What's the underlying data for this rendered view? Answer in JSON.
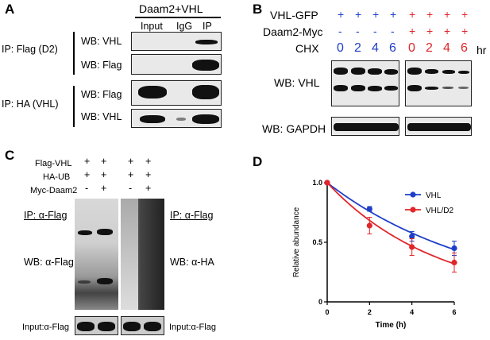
{
  "panelA": {
    "letter": "A",
    "header": "Daam2+VHL",
    "lanes": [
      "Input",
      "IgG",
      "IP"
    ],
    "ip_flag": "IP: Flag (D2)",
    "ip_ha": "IP: HA (VHL)",
    "wb": [
      "WB: VHL",
      "WB: Flag",
      "WB: Flag",
      "WB: VHL"
    ]
  },
  "panelB": {
    "letter": "B",
    "row1_label": "VHL-GFP",
    "row2_label": "Daam2-Myc",
    "row3_label": "CHX",
    "left_vhl": [
      "+",
      "+",
      "+",
      "+"
    ],
    "left_daam": [
      "-",
      "-",
      "-",
      "-"
    ],
    "right_vhl": [
      "+",
      "+",
      "+",
      "+"
    ],
    "right_daam": [
      "+",
      "+",
      "+",
      "+"
    ],
    "times": [
      "0",
      "2",
      "4",
      "6"
    ],
    "unit": "hr",
    "wb_vhl": "WB: VHL",
    "wb_gapdh": "WB: GAPDH",
    "colors": {
      "left": "#1f3fc8",
      "right": "#e0262a"
    }
  },
  "panelC": {
    "letter": "C",
    "rows": [
      "Flag-VHL",
      "HA-UB",
      "Myc-Daam2"
    ],
    "g1": [
      [
        "+",
        "+"
      ],
      [
        "+",
        "+"
      ],
      [
        "-",
        "+"
      ]
    ],
    "g2": [
      [
        "+",
        "+"
      ],
      [
        "+",
        "+"
      ],
      [
        "-",
        "+"
      ]
    ],
    "ip_left": "IP: α-Flag",
    "ip_right": "IP: α-Flag",
    "wb_left": "WB: α-Flag",
    "wb_right": "WB: α-HA",
    "input_left": "Input:α-Flag",
    "input_right": "Input:α-Flag"
  },
  "panelD": {
    "letter": "D",
    "chart_data": {
      "type": "scatter",
      "xlabel": "Time (h)",
      "ylabel": "Relative abundance",
      "xlim": [
        0,
        6
      ],
      "ylim": [
        0,
        1.0
      ],
      "xticks": [
        "0",
        "2",
        "4",
        "6"
      ],
      "yticks": [
        "0",
        "0.5",
        "1.0"
      ],
      "legend_position": "top-right",
      "series": [
        {
          "name": "VHL",
          "color": "#1f3fc8",
          "x": [
            0,
            2,
            4,
            6
          ],
          "y": [
            1.0,
            0.78,
            0.55,
            0.45
          ],
          "err": [
            0,
            0.02,
            0.04,
            0.06
          ]
        },
        {
          "name": "VHL/D2",
          "color": "#e0262a",
          "x": [
            0,
            2,
            4,
            6
          ],
          "y": [
            1.0,
            0.64,
            0.46,
            0.33
          ],
          "err": [
            0,
            0.07,
            0.07,
            0.08
          ]
        }
      ],
      "fit": "exponential decay"
    }
  }
}
